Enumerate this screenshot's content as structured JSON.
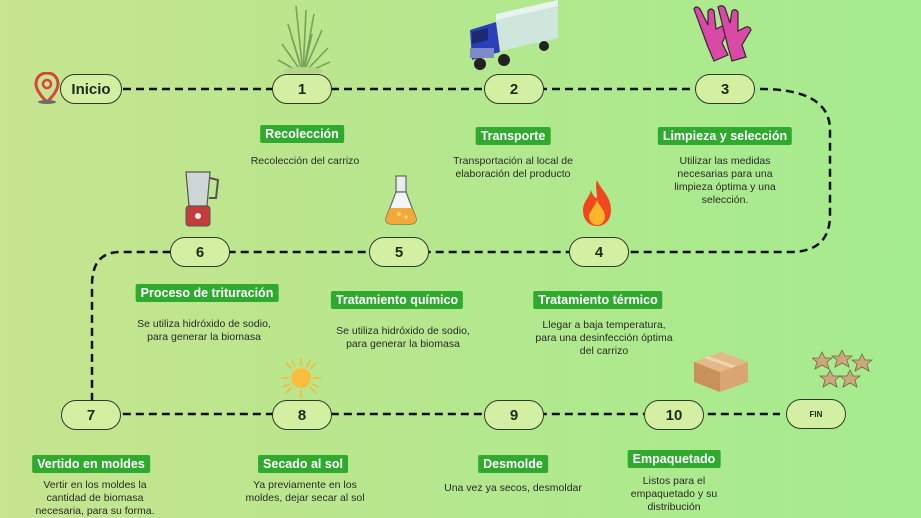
{
  "nodes": {
    "start": "Inicio",
    "n1": "1",
    "n2": "2",
    "n3": "3",
    "n4": "4",
    "n5": "5",
    "n6": "6",
    "n7": "7",
    "n8": "8",
    "n9": "9",
    "n10": "10",
    "end": "FIN"
  },
  "steps": [
    {
      "title": "Recolección",
      "desc": "Recolección del carrizo"
    },
    {
      "title": "Transporte",
      "desc": "Transportación al local de\nelaboración del producto"
    },
    {
      "title": "Limpieza y selección",
      "desc": "Utilizar las medidas\nnecesarias para una\nlimpieza óptima y una\nselección."
    },
    {
      "title": "Tratamiento térmico",
      "desc": "Llegar a baja temperatura,\npara una desinfección óptima\ndel carrizo"
    },
    {
      "title": "Tratamiento químico",
      "desc": "Se utiliza hidróxido de sodio,\npara generar la biomasa"
    },
    {
      "title": "Proceso de trituración",
      "desc": "Se utiliza hidróxido de sodio,\npara generar la biomasa"
    },
    {
      "title": "Vertido en moldes",
      "desc": "Vertir en los moldes la\ncantidad de biomasa\nnecesaria, para su forma."
    },
    {
      "title": "Secado al sol",
      "desc": "Ya previamente en los\nmoldes, dejar secar al sol"
    },
    {
      "title": "Desmolde",
      "desc": "Una vez ya secos, desmoldar"
    },
    {
      "title": "Empaquetado",
      "desc": "Listos para el\nempaquetado y su\ndistribución"
    }
  ],
  "colors": {
    "label_bg": "#2faa2f",
    "node_bg": "#d3f0a2",
    "path": "#111111"
  },
  "icons": [
    "location-pin-icon",
    "grass-icon",
    "truck-icon",
    "gloves-icon",
    "fire-icon",
    "flask-icon",
    "blender-icon",
    "sun-icon",
    "cardboard-box-icon",
    "star-shaped-blocks-icon"
  ]
}
